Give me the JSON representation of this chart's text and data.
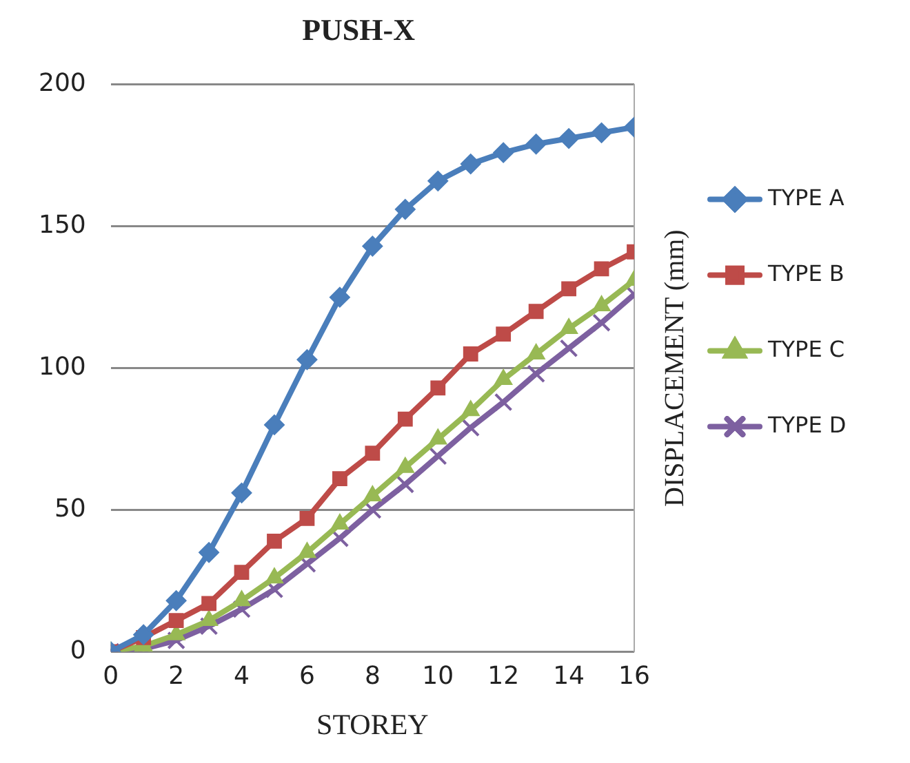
{
  "chart_data": {
    "type": "line",
    "title": "PUSH-X",
    "xlabel": "STOREY",
    "ylabel": "DISPLACEMENT (mm)",
    "x": [
      0,
      1,
      2,
      3,
      4,
      5,
      6,
      7,
      8,
      9,
      10,
      11,
      12,
      13,
      14,
      15,
      16
    ],
    "xlim": [
      0,
      16
    ],
    "xticks": [
      0,
      2,
      4,
      6,
      8,
      10,
      12,
      14,
      16
    ],
    "ylim": [
      0,
      200
    ],
    "yticks": [
      0,
      50,
      100,
      150,
      200
    ],
    "grid": "y",
    "legend": "right",
    "series": [
      {
        "name": "TYPE A",
        "color": "#4a7ebb",
        "marker": "diamond",
        "values": [
          0,
          6,
          18,
          35,
          56,
          80,
          103,
          125,
          143,
          156,
          166,
          172,
          176,
          179,
          181,
          183,
          185
        ]
      },
      {
        "name": "TYPE B",
        "color": "#be4b48",
        "marker": "square",
        "values": [
          0,
          5,
          11,
          17,
          28,
          39,
          47,
          61,
          70,
          82,
          93,
          105,
          112,
          120,
          128,
          135,
          141
        ]
      },
      {
        "name": "TYPE C",
        "color": "#98b954",
        "marker": "triangle",
        "values": [
          0,
          2,
          6,
          11,
          18,
          26,
          35,
          45,
          55,
          65,
          75,
          85,
          96,
          105,
          114,
          122,
          131
        ]
      },
      {
        "name": "TYPE D",
        "color": "#7d60a0",
        "marker": "cross",
        "values": [
          0,
          1,
          4,
          9,
          15,
          22,
          31,
          40,
          50,
          59,
          69,
          79,
          88,
          98,
          107,
          116,
          126
        ]
      }
    ]
  }
}
